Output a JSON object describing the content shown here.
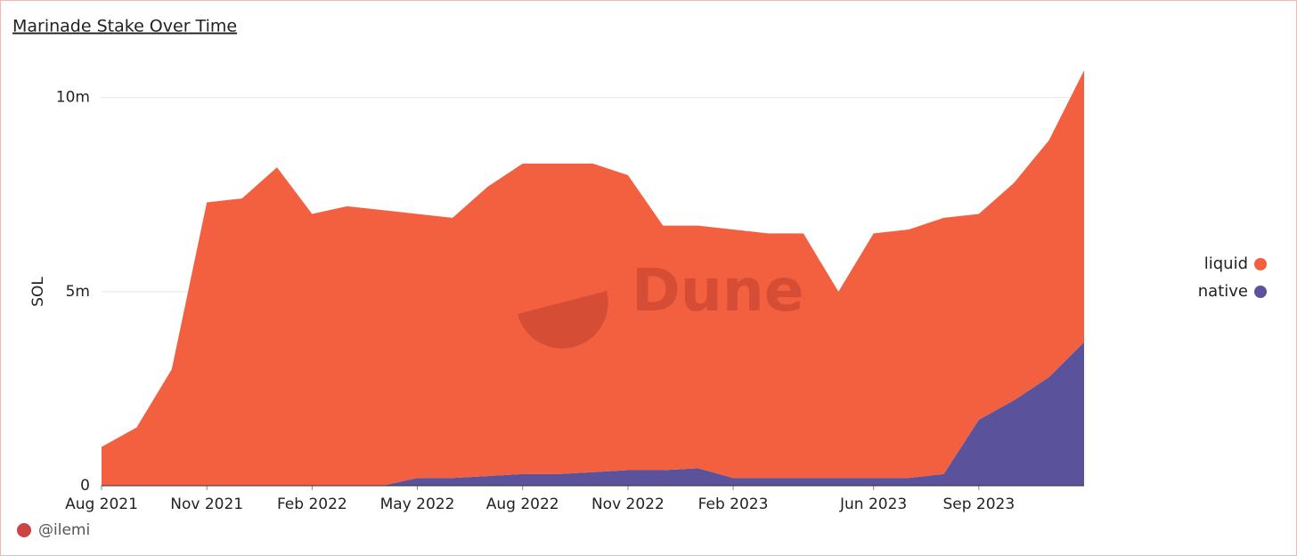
{
  "chart_data": {
    "type": "area",
    "stacked": true,
    "title": "Marinade Stake Over Time",
    "y_label": "SOL",
    "watermark": "Dune",
    "author": "@ilemi",
    "x": [
      "2021-08",
      "2021-09",
      "2021-10",
      "2021-11",
      "2021-12",
      "2022-01",
      "2022-02",
      "2022-03",
      "2022-04",
      "2022-05",
      "2022-06",
      "2022-07",
      "2022-08",
      "2022-09",
      "2022-10",
      "2022-11",
      "2022-12",
      "2023-01",
      "2023-02",
      "2023-03",
      "2023-04",
      "2023-05",
      "2023-06",
      "2023-07",
      "2023-08",
      "2023-09",
      "2023-10",
      "2023-11",
      "2023-12"
    ],
    "xlim": [
      "2021-08",
      "2023-12"
    ],
    "xticks": [
      {
        "value": "2021-08",
        "label": "Aug 2021"
      },
      {
        "value": "2021-11",
        "label": "Nov 2021"
      },
      {
        "value": "2022-02",
        "label": "Feb 2022"
      },
      {
        "value": "2022-05",
        "label": "May 2022"
      },
      {
        "value": "2022-08",
        "label": "Aug 2022"
      },
      {
        "value": "2022-11",
        "label": "Nov 2022"
      },
      {
        "value": "2023-02",
        "label": "Feb 2023"
      },
      {
        "value": "2023-06",
        "label": "Jun 2023"
      },
      {
        "value": "2023-09",
        "label": "Sep 2023"
      }
    ],
    "ylim": [
      0,
      11000000
    ],
    "yticks": [
      0,
      {
        "value": 5000000,
        "label": "5m"
      },
      {
        "value": 10000000,
        "label": "10m"
      }
    ],
    "grid": true,
    "series": [
      {
        "name": "liquid",
        "color": "#f2603f",
        "values": [
          1000000,
          1500000,
          3000000,
          7300000,
          7400000,
          8200000,
          7000000,
          7200000,
          7100000,
          6800000,
          6700000,
          7450000,
          8000000,
          8000000,
          7950000,
          7600000,
          6300000,
          6250000,
          6400000,
          6300000,
          6300000,
          4800000,
          6300000,
          6400000,
          6600000,
          5300000,
          5600000,
          6100000,
          7000000
        ]
      },
      {
        "name": "native",
        "color": "#5a539b",
        "values": [
          0,
          0,
          0,
          0,
          0,
          0,
          0,
          0,
          0,
          200000,
          200000,
          250000,
          300000,
          300000,
          350000,
          400000,
          400000,
          450000,
          200000,
          200000,
          200000,
          200000,
          200000,
          200000,
          300000,
          1700000,
          2200000,
          2800000,
          3700000
        ]
      }
    ]
  }
}
